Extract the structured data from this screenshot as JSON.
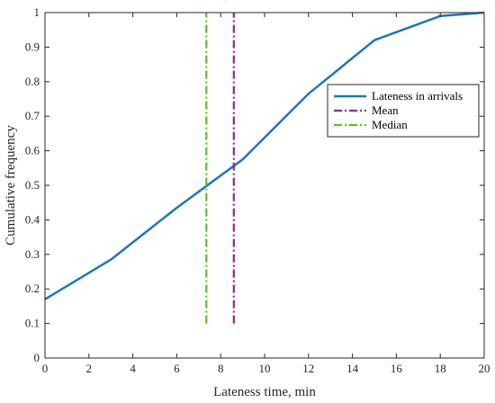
{
  "chart_data": {
    "type": "line",
    "xlabel": "Lateness time, min",
    "ylabel": "Cumulative frequency",
    "xlim": [
      0,
      20
    ],
    "ylim": [
      0,
      1
    ],
    "xticks": [
      "0",
      "2",
      "4",
      "6",
      "8",
      "10",
      "12",
      "14",
      "16",
      "18",
      "20"
    ],
    "yticks": [
      "0",
      "0.1",
      "0.2",
      "0.3",
      "0.4",
      "0.5",
      "0.6",
      "0.7",
      "0.8",
      "0.9",
      "1"
    ],
    "grid": false,
    "legend_position": "right",
    "series": [
      {
        "name": "Lateness in arrivals",
        "style": "solid",
        "color": "#1f77b4",
        "x": [
          0,
          3,
          6,
          9,
          12,
          15,
          18,
          20
        ],
        "y": [
          0.17,
          0.285,
          0.435,
          0.575,
          0.765,
          0.92,
          0.99,
          1.0
        ]
      },
      {
        "name": "Mean",
        "style": "dash-dot",
        "color": "#8b2a8f",
        "x": [
          8.6,
          8.6
        ],
        "y": [
          0.1,
          1.0
        ]
      },
      {
        "name": "Median",
        "style": "dash-dot",
        "color": "#5cbf1f",
        "x": [
          7.35,
          7.35
        ],
        "y": [
          0.1,
          1.0
        ]
      }
    ]
  }
}
